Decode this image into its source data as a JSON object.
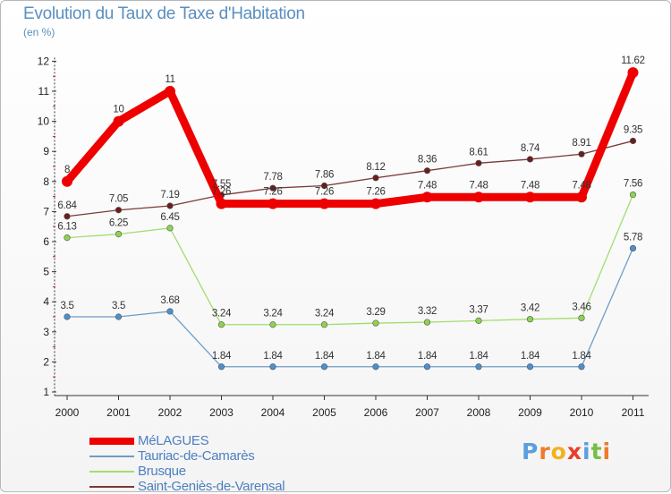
{
  "page": {
    "title": "Evolution du Taux de Taxe d'Habitation",
    "subtitle": "(en %)"
  },
  "logo": {
    "text": "Proxiti",
    "letters": [
      "P",
      "r",
      "o",
      "x",
      "i",
      "t",
      "i"
    ],
    "colors": [
      "#5aa0e0",
      "#ee7a2c",
      "#f2b21b",
      "#e63f2b",
      "#5aa0e0",
      "#74bf44",
      "#ee7a2c"
    ]
  },
  "chart_data": {
    "type": "line",
    "title": "Evolution du Taux de Taxe d'Habitation",
    "ylabel": "(en %)",
    "xlabel": "",
    "x": [
      "2000",
      "2001",
      "2002",
      "2003",
      "2004",
      "2005",
      "2006",
      "2007",
      "2008",
      "2009",
      "2010",
      "2011"
    ],
    "ylim": [
      1,
      12
    ],
    "yticks": [
      "1",
      "2",
      "3",
      "4",
      "5",
      "6",
      "7",
      "8",
      "9",
      "10",
      "11",
      "12"
    ],
    "grid": false,
    "legend_position": "bottom-left",
    "series": [
      {
        "name": "MéLAGUES",
        "color": "#ee0000",
        "marker": "#ee0000",
        "values": [
          8,
          10,
          11,
          7.26,
          7.26,
          7.26,
          7.26,
          7.48,
          7.48,
          7.48,
          7.48,
          11.62
        ],
        "labels": [
          "8",
          "10",
          "11",
          "7.26",
          "7.26",
          "7.26",
          "7.26",
          "7.48",
          "7.48",
          "7.48",
          "7.48",
          "11.62"
        ],
        "thick": true
      },
      {
        "name": "Tauriac-de-Camarès",
        "color": "#6e9cc8",
        "marker": "#4f8fce",
        "values": [
          3.5,
          3.5,
          3.68,
          1.84,
          1.84,
          1.84,
          1.84,
          1.84,
          1.84,
          1.84,
          1.84,
          5.78
        ],
        "labels": [
          "3.5",
          "3.5",
          "3.68",
          "1.84",
          "1.84",
          "1.84",
          "1.84",
          "1.84",
          "1.84",
          "1.84",
          "1.84",
          "5.78"
        ],
        "thick": false
      },
      {
        "name": "Brusque",
        "color": "#a3dd6f",
        "marker": "#8fd24e",
        "values": [
          6.13,
          6.25,
          6.45,
          3.24,
          3.24,
          3.24,
          3.29,
          3.32,
          3.37,
          3.42,
          3.46,
          7.56
        ],
        "labels": [
          "6.13",
          "6.25",
          "6.45",
          "3.24",
          "3.24",
          "3.24",
          "3.29",
          "3.32",
          "3.37",
          "3.42",
          "3.46",
          "7.56"
        ],
        "thick": false
      },
      {
        "name": "Saint-Geniès-de-Varensal",
        "color": "#7a3a3a",
        "marker": "#6a1e1e",
        "values": [
          6.84,
          7.05,
          7.19,
          7.55,
          7.78,
          7.86,
          8.12,
          8.36,
          8.61,
          8.74,
          8.91,
          9.35
        ],
        "labels": [
          "6.84",
          "7.05",
          "7.19",
          "7.55",
          "7.78",
          "7.86",
          "8.12",
          "8.36",
          "8.61",
          "8.74",
          "8.91",
          "9.35"
        ],
        "thick": false
      }
    ]
  }
}
